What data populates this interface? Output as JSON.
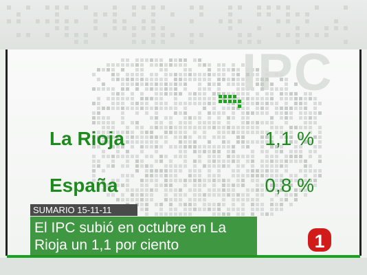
{
  "watermark": "IPC",
  "stats": [
    {
      "label": "La Rioja",
      "value": "1,1 %"
    },
    {
      "label": "España",
      "value": "0,8 %"
    }
  ],
  "summary_tag": "SUMARIO 15-11-11",
  "headline": "El IPC subió en octubre en La Rioja un 1,1 por ciento",
  "logo": {
    "text": "1",
    "icon": "tve-la1-logo"
  },
  "colors": {
    "accent_green": "#1d8a1d",
    "banner_green": "#268a28",
    "highlight_green": "#1fa51f",
    "logo_red": "#d11a1a",
    "tag_gray": "#4a4a4a"
  }
}
